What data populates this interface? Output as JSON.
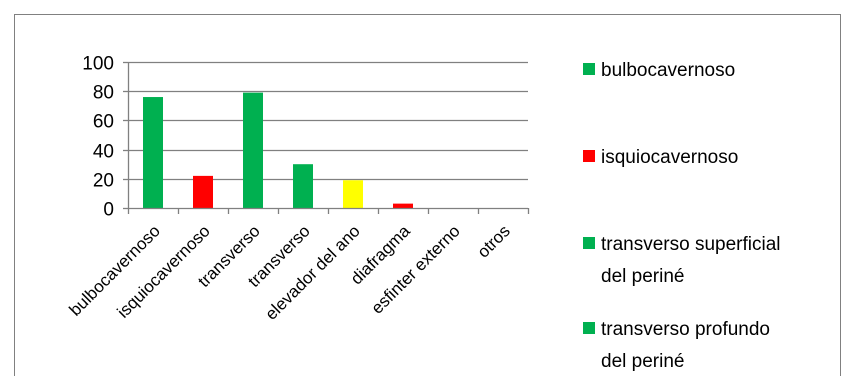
{
  "chart_data": {
    "type": "bar",
    "title": "",
    "xlabel": "",
    "ylabel": "",
    "ylim": [
      0,
      100
    ],
    "yticks": [
      0,
      20,
      40,
      60,
      80,
      100
    ],
    "grid": true,
    "legend_position": "right",
    "categories": [
      "bulbocavernoso",
      "isquiocavernoso",
      "transverso",
      "transverso",
      "elevador del ano",
      "diafragma",
      "esfinter externo",
      "otros"
    ],
    "values": [
      76,
      22,
      79,
      30,
      19,
      3,
      0,
      0
    ],
    "bar_colors": [
      "#00b050",
      "#ff0000",
      "#00b050",
      "#00b050",
      "#ffff00",
      "#ff0000",
      "#00b050",
      "#00b050"
    ],
    "legend": [
      {
        "lines": [
          "bulbocavernoso"
        ],
        "color": "#00b050"
      },
      {
        "lines": [
          "isquiocavernoso"
        ],
        "color": "#ff0000"
      },
      {
        "lines": [
          "transverso superficial",
          "del periné"
        ],
        "color": "#00b050"
      },
      {
        "lines": [
          "transverso profundo",
          "del periné"
        ],
        "color": "#00b050"
      }
    ]
  },
  "colors": {
    "axis": "#808080",
    "grid": "#808080",
    "frame": "#808080"
  }
}
